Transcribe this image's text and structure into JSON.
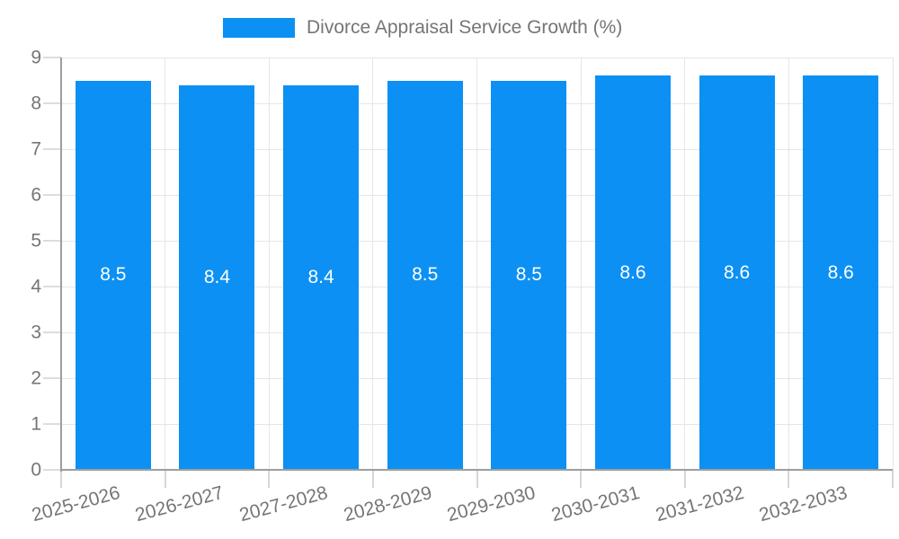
{
  "chart_data": {
    "type": "bar",
    "title": "Divorce Appraisal Service Growth (%)",
    "legend_position": "top",
    "categories": [
      "2025-2026",
      "2026-2027",
      "2027-2028",
      "2028-2029",
      "2029-2030",
      "2030-2031",
      "2031-2032",
      "2032-2033"
    ],
    "values": [
      8.5,
      8.4,
      8.4,
      8.5,
      8.5,
      8.6,
      8.6,
      8.6
    ],
    "value_labels": [
      "8.5",
      "8.4",
      "8.4",
      "8.5",
      "8.5",
      "8.6",
      "8.6",
      "8.6"
    ],
    "xlabel": "",
    "ylabel": "",
    "ylim": [
      0,
      9
    ],
    "yticks": [
      "0",
      "1",
      "2",
      "3",
      "4",
      "5",
      "6",
      "7",
      "8",
      "9"
    ],
    "grid": true,
    "colors": {
      "bar": "#0d90f3",
      "grid": "#e6e6e6",
      "axis": "#9e9e9e",
      "tick_label": "#757575",
      "legend_text": "#757575",
      "value_label": "#ffffff",
      "background": "#ffffff"
    }
  }
}
